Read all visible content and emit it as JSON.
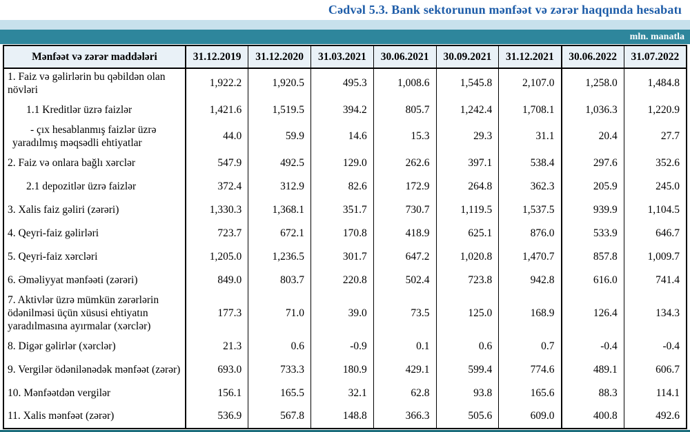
{
  "title": "Cədvəl 5.3. Bank sektorunun mənfəət və zərər haqqında hesabatı",
  "unit_label": "mln. manatla",
  "colors": {
    "title_blue": "#1d5ca8",
    "band_light_blue": "#c7e1ec",
    "band_teal": "#2e869c",
    "header_row_bg": "#e9f1f7",
    "bottom_strip_teal": "#1a6b7a",
    "border": "#000000"
  },
  "table": {
    "header_label": "Mənfəət və zərər maddələri",
    "columns": [
      "31.12.2019",
      "31.12.2020",
      "31.03.2021",
      "30.06.2021",
      "30.09.2021",
      "31.12.2021",
      "30.06.2022",
      "31.07.2022"
    ],
    "rows": [
      {
        "label": "1. Faiz və gəlirlərin bu qəbildən olan növləri",
        "indent": 0,
        "values": [
          "1,922.2",
          "1,920.5",
          "495.3",
          "1,008.6",
          "1,545.8",
          "2,107.0",
          "1,258.0",
          "1,484.8"
        ]
      },
      {
        "label": "1.1 Kreditlər üzrə faizlər",
        "indent": 1,
        "values": [
          "1,421.6",
          "1,519.5",
          "394.2",
          "805.7",
          "1,242.4",
          "1,708.1",
          "1,036.3",
          "1,220.9"
        ]
      },
      {
        "label": "-  çıx hesablanmış faizlər üzrə yaradılmış məqsədli ehtiyatlar",
        "indent": 2,
        "values": [
          "44.0",
          "59.9",
          "14.6",
          "15.3",
          "29.3",
          "31.1",
          "20.4",
          "27.7"
        ]
      },
      {
        "label": "2. Faiz və onlara bağlı xərclər",
        "indent": 0,
        "values": [
          "547.9",
          "492.5",
          "129.0",
          "262.6",
          "397.1",
          "538.4",
          "297.6",
          "352.6"
        ]
      },
      {
        "label": "2.1 depozitlər üzrə faizlər",
        "indent": 1,
        "values": [
          "372.4",
          "312.9",
          "82.6",
          "172.9",
          "264.8",
          "362.3",
          "205.9",
          "245.0"
        ]
      },
      {
        "label": "3. Xalis faiz gəliri (zərəri)",
        "indent": 0,
        "values": [
          "1,330.3",
          "1,368.1",
          "351.7",
          "730.7",
          "1,119.5",
          "1,537.5",
          "939.9",
          "1,104.5"
        ]
      },
      {
        "label": "4. Qeyri-faiz gəlirləri",
        "indent": 0,
        "values": [
          "723.7",
          "672.1",
          "170.8",
          "418.9",
          "625.1",
          "876.0",
          "533.9",
          "646.7"
        ]
      },
      {
        "label": "5. Qeyri-faiz xərcləri",
        "indent": 0,
        "values": [
          "1,205.0",
          "1,236.5",
          "301.7",
          "647.2",
          "1,020.8",
          "1,470.7",
          "857.8",
          "1,009.7"
        ]
      },
      {
        "label": "6. Əməliyyat mənfəəti (zərəri)",
        "indent": 0,
        "values": [
          "849.0",
          "803.7",
          "220.8",
          "502.4",
          "723.8",
          "942.8",
          "616.0",
          "741.4"
        ]
      },
      {
        "label": "7. Aktivlər üzrə mümkün zərərlərin ödənilməsi üçün xüsusi ehtiyatın yaradılmasına ayırmalar (xərclər)",
        "indent": 0,
        "values": [
          "177.3",
          "71.0",
          "39.0",
          "73.5",
          "125.0",
          "168.9",
          "126.4",
          "134.3"
        ]
      },
      {
        "label": "8. Digər gəlirlər (xərclər)",
        "indent": 0,
        "values": [
          "21.3",
          "0.6",
          "-0.9",
          "0.1",
          "0.6",
          "0.7",
          "-0.4",
          "-0.4"
        ]
      },
      {
        "label": "9. Vergilər ödənilənədək mənfəət (zərər)",
        "indent": 0,
        "values": [
          "693.0",
          "733.3",
          "180.9",
          "429.1",
          "599.4",
          "774.6",
          "489.1",
          "606.7"
        ]
      },
      {
        "label": "10. Mənfəətdən vergilər",
        "indent": 0,
        "values": [
          "156.1",
          "165.5",
          "32.1",
          "62.8",
          "93.8",
          "165.6",
          "88.3",
          "114.1"
        ]
      },
      {
        "label": "11. Xalis mənfəət (zərər)",
        "indent": 0,
        "values": [
          "536.9",
          "567.8",
          "148.8",
          "366.3",
          "505.6",
          "609.0",
          "400.8",
          "492.6"
        ]
      }
    ]
  }
}
